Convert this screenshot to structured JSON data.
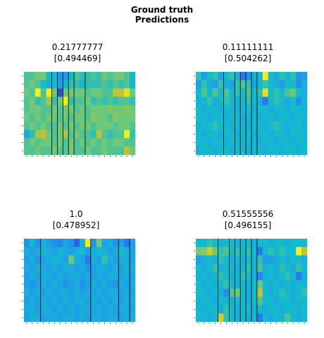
{
  "figure": {
    "suptitle_line1": "Ground truth",
    "suptitle_line2": "Predictions"
  },
  "chart_data": [
    {
      "type": "heatmap",
      "title_line1": "0.21777777",
      "title_line2": "[0.494469]",
      "rows": 10,
      "cols": 20,
      "colormap": "viridis-like (blue-cyan-green-yellow)",
      "tick_labels": "tiny, unreadable",
      "vertical_lines_at_cols": [
        5,
        6,
        7,
        8,
        9,
        11
      ],
      "values": [
        [
          0.55,
          0.55,
          0.6,
          0.6,
          0.45,
          0.45,
          0.3,
          0.35,
          0.45,
          0.55,
          0.5,
          0.5,
          0.55,
          0.5,
          0.6,
          0.55,
          0.6,
          0.6,
          0.55,
          0.45
        ],
        [
          0.55,
          0.6,
          0.55,
          0.45,
          0.4,
          0.45,
          0.35,
          0.45,
          0.5,
          0.5,
          0.45,
          0.5,
          0.5,
          0.5,
          0.55,
          0.5,
          0.55,
          0.5,
          0.55,
          0.45
        ],
        [
          0.6,
          0.55,
          0.95,
          0.55,
          0.95,
          0.6,
          0.1,
          0.6,
          0.6,
          0.6,
          0.6,
          0.55,
          0.6,
          0.6,
          0.55,
          0.55,
          0.75,
          0.75,
          0.9,
          0.6
        ],
        [
          0.55,
          0.6,
          0.5,
          0.55,
          0.7,
          0.5,
          0.6,
          0.95,
          0.5,
          0.55,
          0.55,
          0.6,
          0.5,
          0.55,
          0.5,
          0.55,
          0.5,
          0.55,
          0.55,
          0.5
        ],
        [
          0.55,
          0.6,
          0.6,
          0.55,
          0.55,
          0.6,
          0.55,
          0.6,
          0.6,
          0.55,
          0.6,
          0.55,
          0.6,
          0.6,
          0.6,
          0.65,
          0.6,
          0.6,
          0.65,
          0.6
        ],
        [
          0.6,
          0.55,
          0.6,
          0.55,
          0.6,
          0.6,
          0.55,
          0.6,
          0.55,
          0.6,
          0.6,
          0.55,
          0.65,
          0.6,
          0.6,
          0.55,
          0.65,
          0.6,
          0.6,
          0.6
        ],
        [
          0.55,
          0.6,
          0.55,
          0.6,
          0.55,
          0.55,
          0.6,
          0.55,
          0.6,
          0.55,
          0.6,
          0.6,
          0.55,
          0.6,
          0.6,
          0.6,
          0.55,
          0.6,
          0.6,
          0.55
        ],
        [
          0.4,
          0.5,
          0.7,
          0.75,
          0.6,
          0.55,
          0.6,
          0.7,
          0.55,
          0.6,
          0.55,
          0.55,
          0.5,
          0.75,
          0.55,
          0.5,
          0.55,
          0.55,
          0.95,
          0.5
        ],
        [
          0.55,
          0.6,
          0.55,
          0.6,
          0.6,
          0.55,
          0.6,
          0.55,
          0.6,
          0.55,
          0.6,
          0.55,
          0.6,
          0.55,
          0.6,
          0.55,
          0.6,
          0.6,
          0.55,
          0.55
        ],
        [
          0.55,
          0.55,
          0.6,
          0.55,
          0.55,
          0.6,
          0.55,
          0.55,
          0.6,
          0.55,
          0.55,
          0.6,
          0.55,
          0.55,
          0.6,
          0.55,
          0.55,
          0.55,
          0.75,
          0.6
        ]
      ]
    },
    {
      "type": "heatmap",
      "title_line1": "0.11111111",
      "title_line2": "[0.504262]",
      "rows": 10,
      "cols": 20,
      "colormap": "viridis-like (blue-cyan-green-yellow)",
      "tick_labels": "tiny, unreadable",
      "vertical_lines_at_cols": [
        5,
        7,
        8,
        9,
        10,
        11
      ],
      "values": [
        [
          0.5,
          0.35,
          0.45,
          0.5,
          0.35,
          0.45,
          0.5,
          0.4,
          0.2,
          0.3,
          0.4,
          0.45,
          0.95,
          0.45,
          0.4,
          0.5,
          0.45,
          0.5,
          0.3,
          0.35
        ],
        [
          0.35,
          0.5,
          0.4,
          0.35,
          0.5,
          0.4,
          0.35,
          0.5,
          0.55,
          0.5,
          0.35,
          0.45,
          0.5,
          0.45,
          0.4,
          0.35,
          0.45,
          0.45,
          0.3,
          0.4
        ],
        [
          0.45,
          0.55,
          0.45,
          0.55,
          0.45,
          0.55,
          0.45,
          0.5,
          0.45,
          0.55,
          0.45,
          0.5,
          0.9,
          0.45,
          0.5,
          0.45,
          0.55,
          0.6,
          0.45,
          0.4
        ],
        [
          0.4,
          0.45,
          0.5,
          0.4,
          0.45,
          0.5,
          0.45,
          0.4,
          0.45,
          0.5,
          0.45,
          0.4,
          0.2,
          0.45,
          0.5,
          0.45,
          0.4,
          0.45,
          0.3,
          0.45
        ],
        [
          0.45,
          0.4,
          0.45,
          0.45,
          0.4,
          0.45,
          0.45,
          0.4,
          0.45,
          0.45,
          0.4,
          0.45,
          0.45,
          0.4,
          0.45,
          0.45,
          0.4,
          0.45,
          0.45,
          0.4
        ],
        [
          0.45,
          0.45,
          0.4,
          0.45,
          0.45,
          0.4,
          0.45,
          0.45,
          0.4,
          0.45,
          0.45,
          0.4,
          0.45,
          0.45,
          0.4,
          0.45,
          0.45,
          0.4,
          0.45,
          0.45
        ],
        [
          0.4,
          0.45,
          0.45,
          0.5,
          0.45,
          0.45,
          0.4,
          0.45,
          0.45,
          0.4,
          0.45,
          0.45,
          0.4,
          0.45,
          0.5,
          0.45,
          0.4,
          0.45,
          0.45,
          0.4
        ],
        [
          0.45,
          0.4,
          0.45,
          0.45,
          0.4,
          0.45,
          0.45,
          0.4,
          0.45,
          0.45,
          0.4,
          0.45,
          0.45,
          0.4,
          0.45,
          0.45,
          0.4,
          0.45,
          0.45,
          0.45
        ],
        [
          0.45,
          0.45,
          0.4,
          0.45,
          0.45,
          0.4,
          0.45,
          0.45,
          0.4,
          0.45,
          0.45,
          0.4,
          0.45,
          0.45,
          0.4,
          0.45,
          0.45,
          0.4,
          0.45,
          0.45
        ],
        [
          0.4,
          0.45,
          0.45,
          0.4,
          0.45,
          0.45,
          0.4,
          0.45,
          0.45,
          0.4,
          0.45,
          0.45,
          0.4,
          0.45,
          0.45,
          0.4,
          0.45,
          0.45,
          0.4,
          0.45
        ]
      ]
    },
    {
      "type": "heatmap",
      "title_line1": "1.0",
      "title_line2": "[0.478952]",
      "rows": 10,
      "cols": 20,
      "colormap": "viridis-like (blue-cyan-green-yellow)",
      "tick_labels": "tiny, unreadable",
      "vertical_lines_at_cols": [
        3,
        12,
        17,
        19
      ],
      "values": [
        [
          0.3,
          0.45,
          0.3,
          0.4,
          0.35,
          0.3,
          0.25,
          0.35,
          0.3,
          0.15,
          0.4,
          0.95,
          0.3,
          0.6,
          0.35,
          0.4,
          0.3,
          0.35,
          0.2,
          0.35
        ],
        [
          0.4,
          0.35,
          0.4,
          0.45,
          0.4,
          0.35,
          0.45,
          0.4,
          0.35,
          0.4,
          0.45,
          0.35,
          0.4,
          0.45,
          0.4,
          0.35,
          0.4,
          0.45,
          0.4,
          0.35
        ],
        [
          0.35,
          0.4,
          0.3,
          0.35,
          0.4,
          0.45,
          0.4,
          0.35,
          0.6,
          0.4,
          0.35,
          0.2,
          0.4,
          0.35,
          0.5,
          0.4,
          0.35,
          0.4,
          0.4,
          0.35
        ],
        [
          0.4,
          0.35,
          0.4,
          0.4,
          0.35,
          0.4,
          0.35,
          0.4,
          0.4,
          0.35,
          0.4,
          0.3,
          0.35,
          0.4,
          0.4,
          0.35,
          0.4,
          0.35,
          0.4,
          0.4
        ],
        [
          0.35,
          0.4,
          0.35,
          0.4,
          0.4,
          0.35,
          0.4,
          0.35,
          0.4,
          0.4,
          0.35,
          0.4,
          0.35,
          0.4,
          0.35,
          0.4,
          0.4,
          0.35,
          0.4,
          0.35
        ],
        [
          0.35,
          0.3,
          0.35,
          0.4,
          0.35,
          0.4,
          0.35,
          0.3,
          0.35,
          0.4,
          0.3,
          0.35,
          0.4,
          0.35,
          0.4,
          0.35,
          0.3,
          0.4,
          0.35,
          0.4
        ],
        [
          0.4,
          0.35,
          0.4,
          0.35,
          0.4,
          0.35,
          0.4,
          0.4,
          0.35,
          0.4,
          0.35,
          0.4,
          0.35,
          0.4,
          0.35,
          0.4,
          0.4,
          0.35,
          0.4,
          0.35
        ],
        [
          0.35,
          0.4,
          0.35,
          0.4,
          0.35,
          0.4,
          0.35,
          0.4,
          0.35,
          0.4,
          0.4,
          0.35,
          0.4,
          0.35,
          0.4,
          0.35,
          0.4,
          0.35,
          0.4,
          0.4
        ],
        [
          0.4,
          0.4,
          0.35,
          0.4,
          0.4,
          0.35,
          0.4,
          0.35,
          0.4,
          0.35,
          0.4,
          0.4,
          0.35,
          0.4,
          0.35,
          0.4,
          0.35,
          0.4,
          0.4,
          0.35
        ],
        [
          0.35,
          0.4,
          0.4,
          0.35,
          0.4,
          0.4,
          0.35,
          0.4,
          0.4,
          0.35,
          0.4,
          0.35,
          0.4,
          0.4,
          0.35,
          0.4,
          0.4,
          0.35,
          0.4,
          0.4
        ]
      ]
    },
    {
      "type": "heatmap",
      "title_line1": "0.51555556",
      "title_line2": "[0.496155]",
      "rows": 10,
      "cols": 20,
      "colormap": "viridis-like (blue-cyan-green-yellow)",
      "tick_labels": "tiny, unreadable",
      "vertical_lines_at_cols": [
        4,
        6,
        7,
        8,
        9,
        10,
        11
      ],
      "values": [
        [
          0.45,
          0.45,
          0.5,
          0.45,
          0.4,
          0.45,
          0.45,
          0.4,
          0.45,
          0.45,
          0.4,
          0.45,
          0.45,
          0.4,
          0.45,
          0.45,
          0.4,
          0.45,
          0.45,
          0.45
        ],
        [
          0.6,
          0.65,
          0.8,
          0.6,
          0.5,
          0.55,
          0.45,
          0.5,
          0.45,
          0.5,
          0.45,
          0.2,
          0.45,
          0.5,
          0.45,
          0.5,
          0.45,
          0.45,
          0.95,
          0.75
        ],
        [
          0.35,
          0.4,
          0.45,
          0.4,
          0.5,
          0.45,
          0.4,
          0.45,
          0.4,
          0.45,
          0.4,
          0.5,
          0.35,
          0.35,
          0.4,
          0.45,
          0.4,
          0.45,
          0.45,
          0.4
        ],
        [
          0.45,
          0.4,
          0.45,
          0.5,
          0.4,
          0.45,
          0.45,
          0.4,
          0.45,
          0.5,
          0.4,
          0.55,
          0.4,
          0.45,
          0.4,
          0.5,
          0.45,
          0.4,
          0.5,
          0.45
        ],
        [
          0.4,
          0.45,
          0.4,
          0.45,
          0.5,
          0.45,
          0.4,
          0.45,
          0.5,
          0.45,
          0.4,
          0.25,
          0.4,
          0.45,
          0.4,
          0.45,
          0.5,
          0.45,
          0.2,
          0.4
        ],
        [
          0.45,
          0.4,
          0.45,
          0.4,
          0.45,
          0.5,
          0.45,
          0.4,
          0.45,
          0.4,
          0.45,
          0.6,
          0.45,
          0.4,
          0.45,
          0.4,
          0.45,
          0.4,
          0.45,
          0.45
        ],
        [
          0.45,
          0.45,
          0.4,
          0.45,
          0.4,
          0.3,
          0.55,
          0.6,
          0.45,
          0.4,
          0.45,
          0.75,
          0.45,
          0.4,
          0.45,
          0.5,
          0.45,
          0.4,
          0.45,
          0.5
        ],
        [
          0.4,
          0.45,
          0.45,
          0.4,
          0.45,
          0.45,
          0.4,
          0.45,
          0.45,
          0.4,
          0.45,
          0.55,
          0.45,
          0.45,
          0.4,
          0.45,
          0.45,
          0.4,
          0.45,
          0.45
        ],
        [
          0.45,
          0.4,
          0.45,
          0.45,
          0.4,
          0.5,
          0.45,
          0.4,
          0.45,
          0.45,
          0.4,
          0.45,
          0.4,
          0.45,
          0.45,
          0.4,
          0.45,
          0.45,
          0.4,
          0.45
        ],
        [
          0.45,
          0.45,
          0.4,
          0.45,
          0.8,
          0.5,
          0.45,
          0.4,
          0.45,
          0.4,
          0.45,
          0.2,
          0.45,
          0.4,
          0.45,
          0.45,
          0.55,
          0.45,
          0.4,
          0.45
        ]
      ]
    }
  ]
}
